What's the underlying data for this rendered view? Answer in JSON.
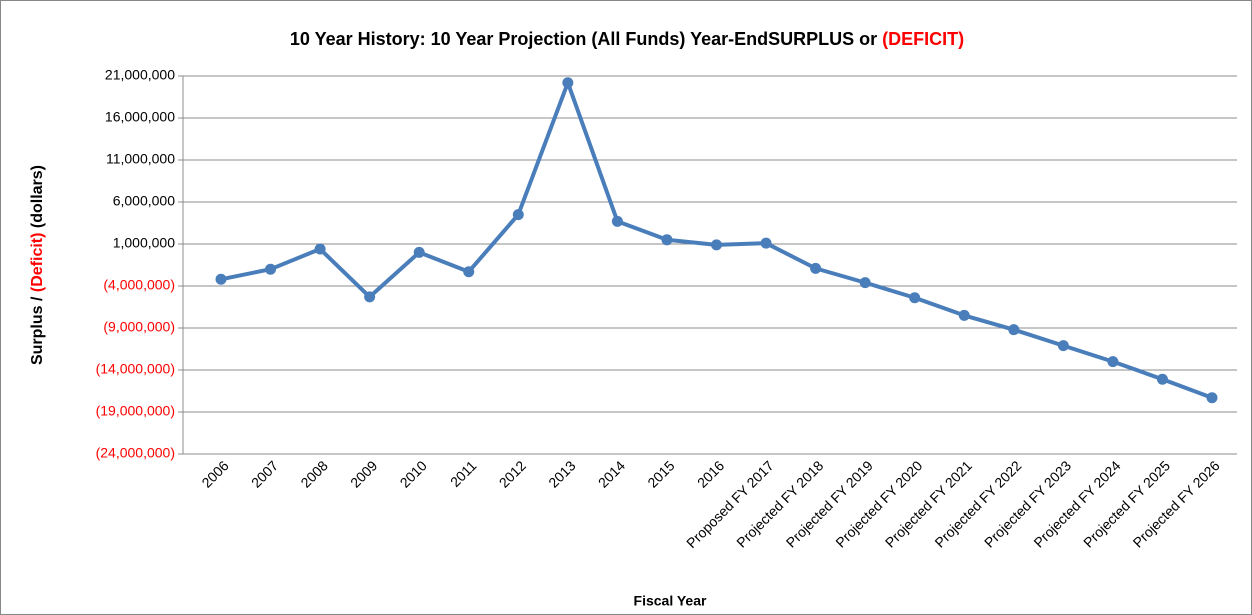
{
  "chart_data": {
    "type": "line",
    "title_parts": [
      "10 Year History: 10 Year Projection (All Funds)  Year-EndSURPLUS or ",
      "(DEFICIT)"
    ],
    "title_colors": [
      "#000000",
      "#ff0000"
    ],
    "ylabel_parts": [
      "Surplus / ",
      "(Deficit)",
      " (dollars)"
    ],
    "ylabel_colors": [
      "#000000",
      "#ff0000",
      "#000000"
    ],
    "xlabel": "Fiscal Year",
    "categories": [
      "2006",
      "2007",
      "2008",
      "2009",
      "2010",
      "2011",
      "2012",
      "2013",
      "2014",
      "2015",
      "2016",
      "Proposed FY 2017",
      "Projected FY 2018",
      "Projected FY 2019",
      "Projected FY 2020",
      "Projected FY 2021",
      "Projected FY 2022",
      "Projected FY 2023",
      "Projected FY 2024",
      "Projected FY 2025",
      "Projected FY 2026"
    ],
    "series": [
      {
        "name": "Surplus / (Deficit)",
        "color": "#4a7ebb",
        "values": [
          -3200000,
          -2000000,
          400000,
          -5300000,
          0,
          -2300000,
          4500000,
          20200000,
          3700000,
          1500000,
          900000,
          1100000,
          -1900000,
          -3600000,
          -5400000,
          -7500000,
          -9200000,
          -11100000,
          -13000000,
          -15100000,
          -17300000
        ]
      }
    ],
    "ylim": [
      -24000000,
      21000000
    ],
    "yticks": [
      {
        "value": -24000000,
        "label": "(24,000,000)"
      },
      {
        "value": -19000000,
        "label": "(19,000,000)"
      },
      {
        "value": -14000000,
        "label": "(14,000,000)"
      },
      {
        "value": -9000000,
        "label": "(9,000,000)"
      },
      {
        "value": -4000000,
        "label": "(4,000,000)"
      },
      {
        "value": 1000000,
        "label": "1,000,000"
      },
      {
        "value": 6000000,
        "label": "6,000,000"
      },
      {
        "value": 11000000,
        "label": "11,000,000"
      },
      {
        "value": 16000000,
        "label": "16,000,000"
      },
      {
        "value": 21000000,
        "label": "21,000,000"
      }
    ],
    "negative_tick_color": "#ff0000",
    "grid": true
  }
}
